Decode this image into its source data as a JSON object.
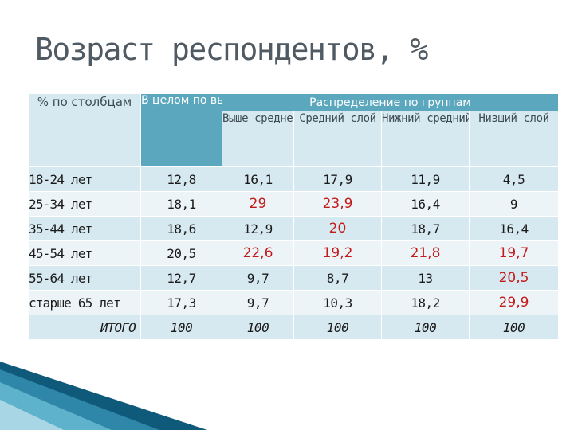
{
  "slide": {
    "title": "Возраст респондентов, %"
  },
  "table": {
    "corner_header": "% по столбцам",
    "total_header": "В целом по выборке",
    "group_header": "Распределение по группам",
    "group_columns": [
      "Выше среднего",
      "Средний слой",
      "Нижний средний класс",
      "Низший слой"
    ],
    "rows": [
      {
        "label": "18-24 лет",
        "values": [
          "12,8",
          "16,1",
          "17,9",
          "11,9",
          "4,5"
        ],
        "highlight": [
          false,
          false,
          false,
          false,
          false
        ]
      },
      {
        "label": "25-34 лет",
        "values": [
          "18,1",
          "29",
          "23,9",
          "16,4",
          "9"
        ],
        "highlight": [
          false,
          true,
          true,
          false,
          false
        ]
      },
      {
        "label": "35-44 лет",
        "values": [
          "18,6",
          "12,9",
          "20",
          "18,7",
          "16,4"
        ],
        "highlight": [
          false,
          false,
          true,
          false,
          false
        ]
      },
      {
        "label": "45-54 лет",
        "values": [
          "20,5",
          "22,6",
          "19,2",
          "21,8",
          "19,7"
        ],
        "highlight": [
          false,
          true,
          true,
          true,
          true
        ]
      },
      {
        "label": "55-64 лет",
        "values": [
          "12,7",
          "9,7",
          "8,7",
          "13",
          "20,5"
        ],
        "highlight": [
          false,
          false,
          false,
          false,
          true
        ]
      },
      {
        "label": "старше 65 лет",
        "values": [
          "17,3",
          "9,7",
          "10,3",
          "18,2",
          "29,9"
        ],
        "highlight": [
          false,
          false,
          false,
          false,
          true
        ]
      }
    ],
    "total_row": {
      "label": "ИТОГО",
      "values": [
        "100",
        "100",
        "100",
        "100",
        "100"
      ]
    }
  },
  "colors": {
    "header_dark": "#5ba7be",
    "header_light": "#d6e8f0",
    "row_alt": "#ecf4f8",
    "highlight": "#c41a1a",
    "title": "#505a63"
  }
}
